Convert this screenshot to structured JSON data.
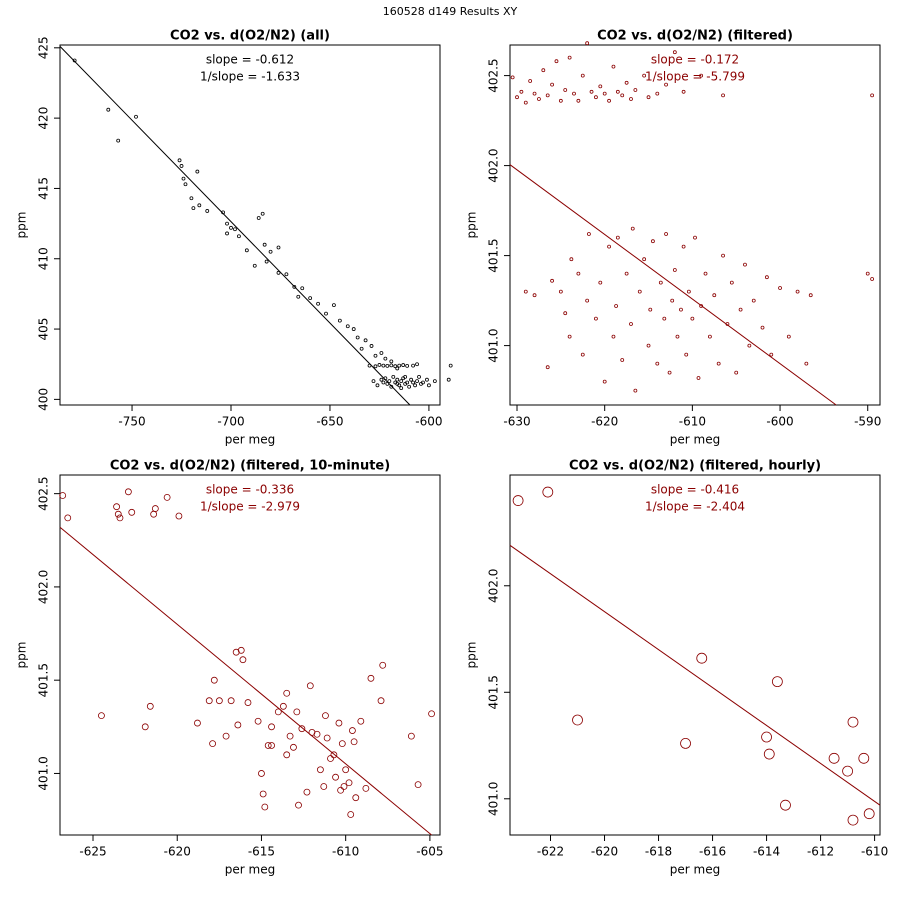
{
  "figure_title": "160528   d149   Results XY",
  "chart_data": [
    {
      "type": "scatter",
      "title": "CO2 vs. d(O2/N2) (all)",
      "x_label": "per meg",
      "y_label": "ppm",
      "annotations": [
        "slope = -0.612",
        "1/slope = -1.633"
      ],
      "color": "#000000",
      "xlim": [
        -786.4,
        -594.4
      ],
      "ylim": [
        399.6,
        425.2
      ],
      "xticks": [
        -750,
        -700,
        -650,
        -600
      ],
      "yticks": [
        400,
        405,
        410,
        415,
        420,
        425
      ],
      "fit_line": {
        "x": [
          -786.4,
          -609.6
        ],
        "y": [
          425.1,
          399.6
        ]
      },
      "x": [
        -779,
        -762,
        -748,
        -757,
        -726,
        -725,
        -724,
        -723,
        -720,
        -717,
        -716,
        -719,
        -712,
        -704,
        -702,
        -700,
        -698,
        -702,
        -696,
        -692,
        -684,
        -686,
        -683,
        -680,
        -682,
        -688,
        -676,
        -676,
        -672,
        -668,
        -664,
        -666,
        -660,
        -656,
        -652,
        -648,
        -645,
        -641,
        -638,
        -636,
        -632,
        -629,
        -634,
        -627,
        -624,
        -622,
        -619,
        -616,
        -630,
        -627,
        -625,
        -623,
        -621,
        -619,
        -617,
        -615,
        -613,
        -611,
        -608,
        -606,
        -628,
        -626,
        -624,
        -623,
        -622,
        -621,
        -620,
        -619,
        -618,
        -617,
        -616,
        -615,
        -614,
        -613,
        -612,
        -611,
        -610,
        -609,
        -608,
        -607,
        -606,
        -605,
        -604,
        -603,
        -601,
        -600,
        -597,
        -590,
        -589,
        -614,
        -612,
        -616
      ],
      "y": [
        424.1,
        420.6,
        420.1,
        418.4,
        417.0,
        416.6,
        415.7,
        415.3,
        414.3,
        416.2,
        413.8,
        413.6,
        413.4,
        413.3,
        412.5,
        412.2,
        412.1,
        411.8,
        411.6,
        410.6,
        413.2,
        412.9,
        411.0,
        410.5,
        409.8,
        409.5,
        410.8,
        409.0,
        408.9,
        408.0,
        407.9,
        407.3,
        407.2,
        406.8,
        406.1,
        406.7,
        405.6,
        405.2,
        405.0,
        404.4,
        404.2,
        403.8,
        403.6,
        403.1,
        403.3,
        402.9,
        402.7,
        402.2,
        402.4,
        402.35,
        402.45,
        402.4,
        402.38,
        402.42,
        402.36,
        402.4,
        402.44,
        402.38,
        402.4,
        402.5,
        401.3,
        401.0,
        401.4,
        401.2,
        401.5,
        401.1,
        401.3,
        400.9,
        401.6,
        401.2,
        401.4,
        401.0,
        401.3,
        401.5,
        401.1,
        401.2,
        400.9,
        401.4,
        401.2,
        401.0,
        401.3,
        401.6,
        401.1,
        401.2,
        401.4,
        401.0,
        401.3,
        401.4,
        402.4,
        400.8,
        401.6,
        401.1
      ]
    },
    {
      "type": "scatter",
      "title": "CO2 vs. d(O2/N2) (filtered)",
      "x_label": "per meg",
      "y_label": "ppm",
      "annotations": [
        "slope = -0.172",
        "1/slope = -5.799"
      ],
      "color": "#8b0000",
      "xlim": [
        -630.8,
        -588.6
      ],
      "ylim": [
        400.67,
        402.67
      ],
      "xticks": [
        -630,
        -620,
        -610,
        -600,
        -590
      ],
      "yticks": [
        {
          "value": 401,
          "label": "401.0"
        },
        401.5,
        {
          "value": 402,
          "label": "402.0"
        },
        402.5
      ],
      "fit_line": {
        "x": [
          -630.8,
          -593.6
        ],
        "y": [
          402.005,
          400.67
        ]
      },
      "x": [
        -630.5,
        -630,
        -629.5,
        -629,
        -628.5,
        -628,
        -627.5,
        -627,
        -626.5,
        -626,
        -625.5,
        -625,
        -624.5,
        -624,
        -623.5,
        -623,
        -622.5,
        -622,
        -621.5,
        -621,
        -620.5,
        -620,
        -619.5,
        -619,
        -618.5,
        -618,
        -617.5,
        -617,
        -616.5,
        -615.5,
        -615,
        -614,
        -613,
        -612,
        -611,
        -609,
        -606.5,
        -589.5,
        -629,
        -628,
        -626.5,
        -626,
        -625,
        -624.5,
        -624,
        -623.8,
        -623,
        -622.5,
        -622,
        -621.8,
        -621,
        -620.5,
        -620,
        -619.5,
        -619,
        -618.7,
        -618.5,
        -618,
        -617.5,
        -617,
        -616.8,
        -616.5,
        -616,
        -615.5,
        -615,
        -614.8,
        -614.5,
        -614,
        -613.6,
        -613.2,
        -613,
        -612.6,
        -612.3,
        -612,
        -611.7,
        -611.3,
        -611,
        -610.7,
        -610.4,
        -610,
        -609.7,
        -609.3,
        -609,
        -608.5,
        -608,
        -607.5,
        -607,
        -606.5,
        -606,
        -605.5,
        -605,
        -604.5,
        -604,
        -603.5,
        -603,
        -602,
        -601.5,
        -601,
        -600,
        -599,
        -598,
        -597,
        -596.5,
        -590,
        -589.5
      ],
      "y": [
        402.49,
        402.38,
        402.41,
        402.35,
        402.47,
        402.4,
        402.37,
        402.53,
        402.39,
        402.45,
        402.58,
        402.36,
        402.42,
        402.6,
        402.4,
        402.36,
        402.5,
        402.68,
        402.41,
        402.38,
        402.44,
        402.4,
        402.36,
        402.55,
        402.41,
        402.39,
        402.46,
        402.37,
        402.42,
        402.5,
        402.38,
        402.4,
        402.45,
        402.63,
        402.41,
        402.5,
        402.39,
        402.39,
        401.3,
        401.28,
        400.88,
        401.36,
        401.3,
        401.18,
        401.05,
        401.48,
        401.4,
        400.95,
        401.25,
        401.62,
        401.15,
        401.35,
        400.8,
        401.55,
        401.05,
        401.22,
        401.6,
        400.92,
        401.4,
        401.12,
        401.65,
        400.75,
        401.3,
        401.48,
        401.0,
        401.2,
        401.58,
        400.9,
        401.35,
        401.15,
        401.62,
        400.85,
        401.25,
        401.42,
        401.05,
        401.2,
        401.55,
        400.95,
        401.3,
        401.15,
        401.6,
        400.82,
        401.22,
        401.4,
        401.05,
        401.28,
        400.9,
        401.5,
        401.12,
        401.35,
        400.85,
        401.2,
        401.45,
        401.0,
        401.25,
        401.1,
        401.38,
        400.95,
        401.32,
        401.05,
        401.3,
        400.9,
        401.28,
        401.4,
        401.37
      ]
    },
    {
      "type": "scatter",
      "title": "CO2 vs. d(O2/N2) (filtered, 10-minute)",
      "x_label": "per meg",
      "y_label": "ppm",
      "annotations": [
        "slope = -0.336",
        "1/slope = -2.979"
      ],
      "color": "#8b0000",
      "xlim": [
        -626.96,
        -604.4
      ],
      "ylim": [
        400.67,
        402.6
      ],
      "xticks": [
        -625,
        -620,
        -615,
        -610,
        -605
      ],
      "yticks": [
        {
          "value": 401,
          "label": "401.0"
        },
        401.5,
        {
          "value": 402,
          "label": "402.0"
        },
        402.5
      ],
      "fit_line": {
        "x": [
          -626.96,
          -604.9
        ],
        "y": [
          402.32,
          400.67
        ]
      },
      "x": [
        -626.8,
        -626.5,
        -623.6,
        -623.5,
        -623.4,
        -622.9,
        -622.7,
        -621.4,
        -621.3,
        -620.6,
        -619.9,
        -624.5,
        -621.9,
        -621.6,
        -618.8,
        -618.1,
        -617.9,
        -617.8,
        -617.5,
        -617.1,
        -616.8,
        -616.5,
        -616.2,
        -616.1,
        -616.4,
        -615.8,
        -615.2,
        -615,
        -614.9,
        -614.8,
        -614.6,
        -614.4,
        -614.4,
        -614,
        -613.7,
        -613.5,
        -613.5,
        -613.3,
        -613.1,
        -612.9,
        -612.8,
        -612.6,
        -612.3,
        -612.1,
        -612,
        -611.7,
        -611.5,
        -611.3,
        -611.2,
        -611.1,
        -610.9,
        -610.7,
        -610.6,
        -610.4,
        -610.3,
        -610.2,
        -610.1,
        -610,
        -609.8,
        -609.6,
        -609.4,
        -609.5,
        -609.1,
        -608.8,
        -608.5,
        -607.8,
        -607.9,
        -606.1,
        -605.7,
        -604.9,
        -609.7
      ],
      "y": [
        402.49,
        402.37,
        402.43,
        402.39,
        402.37,
        402.51,
        402.4,
        402.39,
        402.42,
        402.48,
        402.38,
        401.31,
        401.25,
        401.36,
        401.27,
        401.39,
        401.16,
        401.5,
        401.39,
        401.2,
        401.39,
        401.65,
        401.66,
        401.61,
        401.26,
        401.38,
        401.28,
        401.0,
        400.89,
        400.82,
        401.15,
        401.15,
        401.25,
        401.33,
        401.36,
        401.1,
        401.43,
        401.2,
        401.14,
        401.33,
        400.83,
        401.24,
        400.9,
        401.47,
        401.22,
        401.21,
        401.02,
        400.93,
        401.31,
        401.19,
        401.08,
        401.1,
        400.98,
        401.27,
        400.91,
        401.16,
        400.93,
        401.02,
        400.95,
        401.23,
        400.87,
        401.17,
        401.28,
        400.92,
        401.51,
        401.58,
        401.39,
        401.2,
        400.94,
        401.32,
        400.78
      ]
    },
    {
      "type": "scatter",
      "title": "CO2 vs. d(O2/N2) (filtered, hourly)",
      "x_label": "per meg",
      "y_label": "ppm",
      "annotations": [
        "slope = -0.416",
        "1/slope = -2.404"
      ],
      "color": "#8b0000",
      "xlim": [
        -623.5,
        -609.8
      ],
      "ylim": [
        400.83,
        402.52
      ],
      "xticks": [
        -622,
        -620,
        -618,
        -616,
        -614,
        -612,
        -610
      ],
      "yticks": [
        {
          "value": 401,
          "label": "401.0"
        },
        401.5,
        {
          "value": 402,
          "label": "402.0"
        }
      ],
      "fit_line": {
        "x": [
          -623.5,
          -609.8
        ],
        "y": [
          402.19,
          400.97
        ]
      },
      "x": [
        -623.2,
        -622.1,
        -621.0,
        -617.0,
        -616.4,
        -614.0,
        -613.9,
        -613.6,
        -613.3,
        -611.5,
        -611.0,
        -610.8,
        -610.8,
        -610.4,
        -610.2
      ],
      "y": [
        402.4,
        402.44,
        401.37,
        401.26,
        401.66,
        401.29,
        401.21,
        401.55,
        400.97,
        401.19,
        401.13,
        401.36,
        400.9,
        401.19,
        400.93
      ]
    }
  ]
}
